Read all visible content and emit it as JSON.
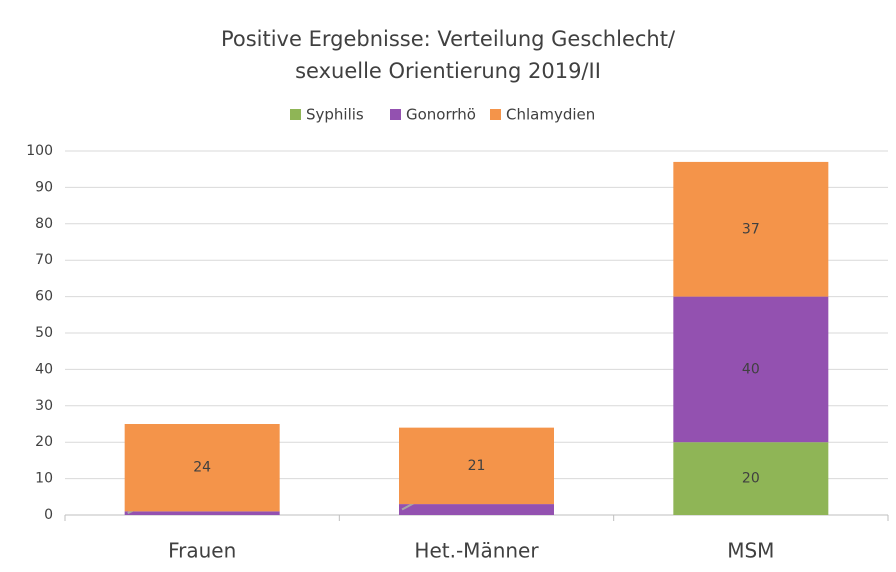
{
  "chart_data": {
    "type": "stacked_bar",
    "title": [
      "Positive Ergebnisse: Verteilung Geschlecht/",
      "sexuelle Orientierung 2019/II"
    ],
    "categories": [
      "Frauen",
      "Het.-Männer",
      "MSM"
    ],
    "series": [
      {
        "name": "Syphilis",
        "color": "#8fb556",
        "values": [
          null,
          null,
          20
        ]
      },
      {
        "name": "Gonorrhö",
        "color": "#9351b0",
        "values": [
          1,
          3,
          40
        ]
      },
      {
        "name": "Chlamydien",
        "color": "#f4944a",
        "values": [
          24,
          21,
          37
        ]
      }
    ],
    "ylim": [
      0,
      100
    ],
    "yticks": [
      0,
      10,
      20,
      30,
      40,
      50,
      60,
      70,
      80,
      90,
      100
    ],
    "grid": true,
    "legend": "top"
  }
}
